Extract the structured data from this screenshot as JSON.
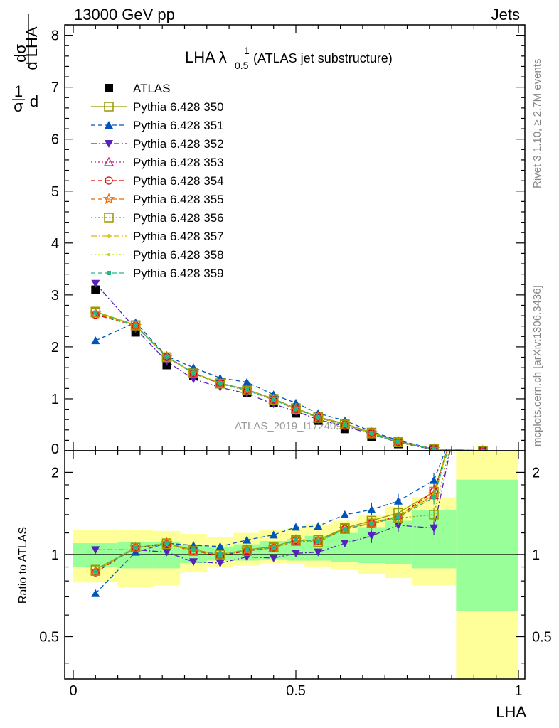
{
  "header": {
    "left": "13000 GeV pp",
    "right": "Jets"
  },
  "side_labels": {
    "rivet": "Rivet 3.1.10, ≥ 2.7M events",
    "mcplots": "mcplots.cern.ch [arXiv:1306.3436]"
  },
  "watermark": "ATLAS_2019_I1724098",
  "chart_data": [
    {
      "type": "scatter",
      "panel": "main",
      "title_main": "LHA λ",
      "title_sup": "1",
      "title_sub": "0.5",
      "title_rest": "(ATLAS jet substructure)",
      "ylabel": "1/σ dσ/d LHA",
      "ylabel_parts": {
        "pre": "d",
        "sigma": "σ",
        "num1": "1",
        "num2": "dσ",
        "den2": "d LHA"
      },
      "xlim": [
        0,
        1
      ],
      "ylim": [
        0,
        8.2
      ],
      "y_ticks": [
        "0",
        "1",
        "2",
        "3",
        "4",
        "5",
        "6",
        "7",
        "8"
      ],
      "x": [
        0.05,
        0.14,
        0.21,
        0.27,
        0.33,
        0.39,
        0.45,
        0.5,
        0.55,
        0.61,
        0.67,
        0.73,
        0.81,
        0.92
      ],
      "series": [
        {
          "name": "ATLAS",
          "color": "#000000",
          "marker": "square-filled",
          "line": "none",
          "values": [
            3.1,
            2.28,
            1.65,
            1.45,
            1.28,
            1.12,
            0.93,
            0.72,
            0.58,
            0.42,
            0.27,
            0.13,
            0.02,
            0.0
          ]
        },
        {
          "name": "Pythia 6.428 350",
          "color": "#999900",
          "marker": "square-open",
          "line": "solid",
          "values": [
            2.68,
            2.42,
            1.8,
            1.5,
            1.3,
            1.18,
            1.0,
            0.82,
            0.65,
            0.52,
            0.35,
            0.18,
            0.03,
            0.0
          ]
        },
        {
          "name": "Pythia 6.428 351",
          "color": "#0055bb",
          "marker": "triangle-up-filled",
          "line": "dashed",
          "values": [
            2.12,
            2.47,
            1.82,
            1.6,
            1.4,
            1.32,
            1.08,
            0.92,
            0.72,
            0.58,
            0.37,
            0.2,
            0.03,
            0.0
          ]
        },
        {
          "name": "Pythia 6.428 352",
          "color": "#5522bb",
          "marker": "triangle-down-filled",
          "line": "dashdot",
          "values": [
            3.22,
            2.35,
            1.72,
            1.38,
            1.22,
            1.1,
            0.9,
            0.76,
            0.6,
            0.47,
            0.32,
            0.16,
            0.02,
            0.0
          ]
        },
        {
          "name": "Pythia 6.428 353",
          "color": "#bb2277",
          "marker": "triangle-up-open",
          "line": "dotted",
          "values": [
            2.65,
            2.4,
            1.82,
            1.5,
            1.3,
            1.17,
            0.98,
            0.8,
            0.64,
            0.51,
            0.34,
            0.17,
            0.03,
            0.0
          ]
        },
        {
          "name": "Pythia 6.428 354",
          "color": "#dd0000",
          "marker": "circle-open",
          "line": "dashed",
          "values": [
            2.62,
            2.41,
            1.81,
            1.49,
            1.29,
            1.17,
            0.98,
            0.81,
            0.64,
            0.5,
            0.34,
            0.17,
            0.03,
            0.0
          ]
        },
        {
          "name": "Pythia 6.428 355",
          "color": "#ee6600",
          "marker": "star-open",
          "line": "dashed",
          "values": [
            2.64,
            2.4,
            1.8,
            1.5,
            1.3,
            1.17,
            0.99,
            0.81,
            0.64,
            0.51,
            0.34,
            0.17,
            0.03,
            0.0
          ]
        },
        {
          "name": "Pythia 6.428 356",
          "color": "#999900",
          "marker": "square-open",
          "line": "dotted",
          "values": [
            2.66,
            2.41,
            1.8,
            1.49,
            1.29,
            1.16,
            0.98,
            0.8,
            0.63,
            0.5,
            0.33,
            0.16,
            0.03,
            0.0
          ]
        },
        {
          "name": "Pythia 6.428 357",
          "color": "#ddbb00",
          "marker": "cross-small",
          "line": "dashdot",
          "values": [
            2.67,
            2.42,
            1.81,
            1.5,
            1.3,
            1.17,
            0.99,
            0.81,
            0.64,
            0.51,
            0.34,
            0.17,
            0.03,
            0.0
          ]
        },
        {
          "name": "Pythia 6.428 358",
          "color": "#bbdd00",
          "marker": "dot-small",
          "line": "dotted",
          "values": [
            2.66,
            2.41,
            1.8,
            1.5,
            1.3,
            1.17,
            0.99,
            0.81,
            0.64,
            0.5,
            0.34,
            0.17,
            0.03,
            0.0
          ]
        },
        {
          "name": "Pythia 6.428 359",
          "color": "#22bb88",
          "marker": "square-small-filled",
          "line": "dashed",
          "values": [
            2.66,
            2.41,
            1.81,
            1.5,
            1.3,
            1.17,
            0.98,
            0.81,
            0.64,
            0.5,
            0.34,
            0.17,
            0.03,
            0.0
          ]
        }
      ]
    },
    {
      "type": "line",
      "panel": "ratio",
      "ylabel": "Ratio to ATLAS",
      "xlabel": "LHA",
      "xlim": [
        0,
        1
      ],
      "ylim": [
        0.35,
        2.4
      ],
      "log_y": true,
      "x_ticks": [
        "0",
        "0.5",
        "1"
      ],
      "x_tick_values": [
        0,
        0.5,
        1
      ],
      "y_ticks": [
        "0.5",
        "1",
        "2"
      ],
      "y_tick_values": [
        0.5,
        1,
        2
      ],
      "reference": 1,
      "bands": {
        "bins": [
          [
            0,
            0.1
          ],
          [
            0.1,
            0.18
          ],
          [
            0.18,
            0.24
          ],
          [
            0.24,
            0.3
          ],
          [
            0.3,
            0.36
          ],
          [
            0.36,
            0.42
          ],
          [
            0.42,
            0.48
          ],
          [
            0.48,
            0.52
          ],
          [
            0.52,
            0.58
          ],
          [
            0.58,
            0.64
          ],
          [
            0.64,
            0.7
          ],
          [
            0.7,
            0.76
          ],
          [
            0.76,
            0.86
          ],
          [
            0.86,
            1.0
          ]
        ],
        "stat_lo": [
          0.9,
          0.89,
          0.89,
          0.93,
          0.95,
          0.95,
          0.96,
          0.95,
          0.95,
          0.94,
          0.93,
          0.92,
          0.89,
          0.62
        ],
        "stat_hi": [
          1.1,
          1.11,
          1.11,
          1.08,
          1.07,
          1.09,
          1.12,
          1.14,
          1.17,
          1.2,
          1.26,
          1.33,
          1.45,
          1.88
        ],
        "total_lo": [
          0.79,
          0.76,
          0.77,
          0.86,
          0.9,
          0.91,
          0.93,
          0.92,
          0.9,
          0.88,
          0.85,
          0.82,
          0.77,
          0.35
        ],
        "total_hi": [
          1.23,
          1.23,
          1.22,
          1.19,
          1.16,
          1.2,
          1.23,
          1.25,
          1.29,
          1.33,
          1.4,
          1.5,
          1.62,
          2.4
        ]
      },
      "series": [
        {
          "name": "Pythia 6.428 350",
          "values": [
            0.88,
            1.06,
            1.1,
            1.04,
            1.0,
            1.04,
            1.07,
            1.13,
            1.13,
            1.25,
            1.33,
            1.42,
            1.7
          ]
        },
        {
          "name": "Pythia 6.428 351",
          "values": [
            0.72,
            1.02,
            1.1,
            1.08,
            1.07,
            1.13,
            1.18,
            1.26,
            1.27,
            1.4,
            1.46,
            1.57,
            1.87
          ]
        },
        {
          "name": "Pythia 6.428 352",
          "values": [
            1.04,
            1.04,
            1.02,
            0.94,
            0.93,
            0.98,
            0.97,
            1.01,
            1.02,
            1.1,
            1.17,
            1.28,
            1.25
          ]
        },
        {
          "name": "Pythia 6.428 353",
          "values": [
            0.87,
            1.06,
            1.1,
            1.03,
            1.0,
            1.04,
            1.06,
            1.12,
            1.12,
            1.24,
            1.31,
            1.38,
            1.65
          ]
        },
        {
          "name": "Pythia 6.428 354",
          "values": [
            0.86,
            1.06,
            1.09,
            1.03,
            0.99,
            1.03,
            1.06,
            1.13,
            1.12,
            1.24,
            1.3,
            1.38,
            1.7
          ]
        },
        {
          "name": "Pythia 6.428 355",
          "values": [
            0.87,
            1.06,
            1.1,
            1.03,
            1.0,
            1.04,
            1.06,
            1.13,
            1.12,
            1.24,
            1.3,
            1.37,
            1.66
          ]
        },
        {
          "name": "Pythia 6.428 356",
          "values": [
            0.87,
            1.06,
            1.09,
            1.03,
            1.0,
            1.03,
            1.06,
            1.12,
            1.11,
            1.24,
            1.3,
            1.36,
            1.4
          ]
        },
        {
          "name": "Pythia 6.428 357",
          "values": [
            0.87,
            1.06,
            1.1,
            1.04,
            1.0,
            1.04,
            1.06,
            1.13,
            1.12,
            1.24,
            1.31,
            1.38,
            1.66
          ]
        },
        {
          "name": "Pythia 6.428 358",
          "values": [
            0.87,
            1.06,
            1.09,
            1.03,
            1.0,
            1.04,
            1.06,
            1.13,
            1.12,
            1.24,
            1.3,
            1.37,
            1.62
          ]
        },
        {
          "name": "Pythia 6.428 359",
          "values": [
            0.87,
            1.06,
            1.1,
            1.04,
            1.0,
            1.04,
            1.06,
            1.13,
            1.12,
            1.24,
            1.3,
            1.37,
            1.62
          ]
        }
      ]
    }
  ]
}
